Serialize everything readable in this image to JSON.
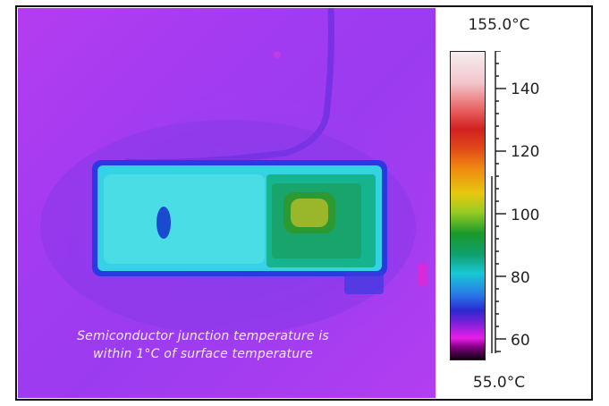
{
  "image": {
    "caption_line1": "Semiconductor junction temperature is",
    "caption_line2": "within 1°C of surface temperature"
  },
  "scale": {
    "max_label": "155.0°C",
    "min_label": "55.0°C",
    "ticks": [
      "140",
      "120",
      "100",
      "80",
      "60"
    ],
    "colors": {
      "background": "#a53cf0",
      "component_body": "#2fd8e0",
      "hotspot": "#9ab62a"
    }
  }
}
